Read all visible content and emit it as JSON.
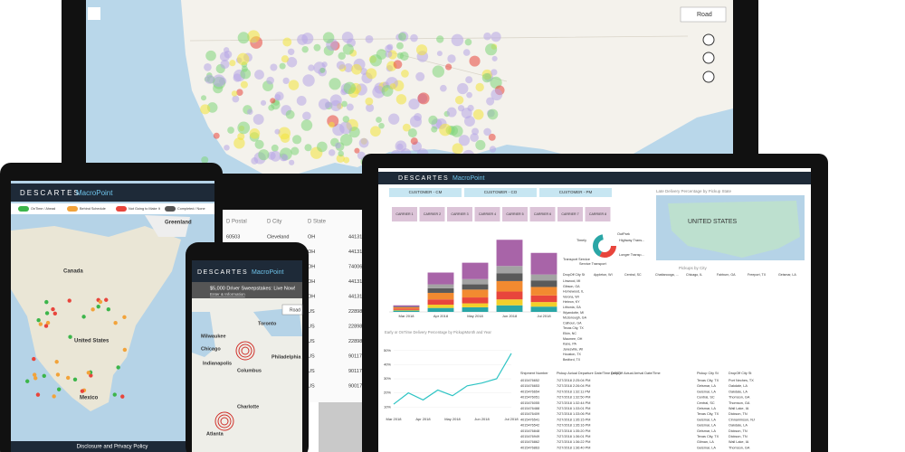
{
  "monitor": {
    "map_mode": "Road",
    "table": {
      "columns": [
        {
          "header": "D Postal",
          "cells": [
            "60503"
          ]
        },
        {
          "header": "D City",
          "cells": [
            "Cleveland"
          ]
        },
        {
          "header": "D State",
          "cells": [
            "OH",
            "OH",
            "OH",
            "OH",
            "OH",
            "US",
            "US",
            "US",
            "US",
            "US",
            "US"
          ]
        },
        {
          "cells": [
            "44131",
            "44131",
            "74006",
            "44131",
            "44131",
            "22898",
            "22898",
            "22898",
            "90117",
            "90117",
            "90017"
          ]
        }
      ]
    }
  },
  "tablet": {
    "brand": "DESCARTES",
    "product": "MacroPoint",
    "legend": [
      "OnTime / Ahead",
      "Behind Schedule",
      "Not Going to Make It",
      "Completed / None"
    ],
    "map_labels": [
      "Greenland",
      "Canada",
      "United States",
      "Mexico"
    ],
    "footer": "Disclosure and Privacy Policy"
  },
  "phone": {
    "brand": "DESCARTES",
    "product": "MacroPoint",
    "banner": "$5,000 Driver Sweepstakes: Live Now!",
    "banner_link": "Enter & Information",
    "map_mode": "Road",
    "cities": [
      "Toronto",
      "Milwaukee",
      "Chicago",
      "Indianapolis",
      "Columbus",
      "Philadelphia",
      "Charlotte",
      "Atlanta"
    ]
  },
  "laptop": {
    "brand": "DESCARTES",
    "product": "MacroPoint",
    "customers": [
      "CUSTOMER - CM",
      "CUSTOMER - CO",
      "CUSTOMER - PM"
    ],
    "carriers": [
      "CARRIER 1",
      "CARRIER 2",
      "CARRIER 3",
      "CARRIER 4",
      "CARRIER 5",
      "CARRIER 6",
      "CARRIER 7",
      "CARRIER 8"
    ],
    "donut_labels": [
      "Timely",
      "OutPark",
      "Highway Trans...",
      "Longer Transp...",
      "Transport Service",
      "Service Transport"
    ],
    "map_title": "Late Delivery Percentage by Pickup State",
    "map_label": "UNITED STATES",
    "pivot": {
      "title": "Pickups by City",
      "headers": [
        "DropOff City St",
        "Appleton, WI",
        "Central, SC",
        "Chattanooga, ...",
        "Chicago, IL",
        "Fairburn, GA",
        "Freeport, TX",
        "Geismar, LA"
      ],
      "rows": [
        "Linwood, MI",
        "Gibson, GA",
        "Homewood, IL",
        "Verona, WI",
        "Hebron, KY",
        "Lithonia, GA",
        "Wyandotte, MI",
        "Mcdonough, GA",
        "Calhoun, GA",
        "Texas City, TX",
        "Elkin, NC",
        "Maumee, OH",
        "Kane, PA",
        "Janesville, WI",
        "Houston, TX",
        "Bedford, TX"
      ]
    },
    "shipments": {
      "headers": [
        "Shipment Number",
        "Pickup Actual Departure Date/Time (UTC)",
        "DropOff Actual Arrival Date/Time",
        "Pickup City St",
        "DropOff City St"
      ],
      "rows": [
        [
          "4015476652",
          "7/27/2018 2:25:04 PM",
          "Texas City, TX",
          "Port Neches, TX"
        ],
        [
          "4015476653",
          "7/27/2018 2:26:04 PM",
          "Geismar, LA",
          "Oakdale, LA"
        ],
        [
          "4015476654",
          "7/27/2018 1:32:11 PM",
          "Geismar, LA",
          "Oakdale, LA"
        ],
        [
          "4015476051",
          "7/27/2018 1:32:50 PM",
          "Central, SC",
          "Thomson, GA"
        ],
        [
          "4015476055",
          "7/27/2018 1:32:44 PM",
          "Central, SC",
          "Thomson, GA"
        ],
        [
          "4015476488",
          "7/27/2018 1:33:01 PM",
          "Geismar, LA",
          "Wall Lake, IA"
        ],
        [
          "4015476409",
          "7/27/2018 1:33:06 PM",
          "Texas City, TX",
          "Dickson, TN"
        ],
        [
          "4015476541",
          "7/27/2018 1:35:15 PM",
          "Geismar, LA",
          "Cinnaminson, NJ"
        ],
        [
          "4015476542",
          "7/27/2018 1:35:16 PM",
          "Geismar, LA",
          "Oakdale, LA"
        ],
        [
          "4015476848",
          "7/27/2018 1:35:20 PM",
          "Geismar, LA",
          "Dickson, TN"
        ],
        [
          "4015476949",
          "7/27/2018 1:36:01 PM",
          "Texas City, TX",
          "Dickson, TN"
        ],
        [
          "4015476862",
          "7/27/2018 1:36:22 PM",
          "Gilman, LA",
          "Wall Lake, IA"
        ],
        [
          "4015476863",
          "7/27/2018 1:36:40 PM",
          "Geismar, LA",
          "Thomson, GA"
        ]
      ]
    }
  },
  "chart_data": [
    {
      "type": "stacked-bar",
      "categories": [
        "Mar 2018",
        "Apr 2018",
        "May 2018",
        "Jun 2018",
        "Jul 2018"
      ],
      "ylim": [
        0,
        120
      ],
      "series": [
        {
          "color": "#2aa6a6",
          "values": [
            2,
            6,
            7,
            10,
            8
          ]
        },
        {
          "color": "#f2cf2a",
          "values": [
            1,
            5,
            6,
            9,
            7
          ]
        },
        {
          "color": "#e8453c",
          "values": [
            2,
            8,
            9,
            12,
            10
          ]
        },
        {
          "color": "#f28a30",
          "values": [
            2,
            10,
            12,
            16,
            13
          ]
        },
        {
          "color": "#5a5a5a",
          "values": [
            1,
            7,
            8,
            12,
            10
          ]
        },
        {
          "color": "#a3a3a3",
          "values": [
            0,
            6,
            8,
            11,
            9
          ]
        },
        {
          "color": "#a864a8",
          "values": [
            2,
            18,
            25,
            40,
            33
          ]
        }
      ]
    },
    {
      "type": "line",
      "title": "Early or OnTime Delivery Percentage by PickupMonth and Year",
      "categories": [
        "Mar 2018",
        null,
        "Apr 2018",
        null,
        "May 2018",
        null,
        "Jun 2018",
        null,
        "Jul 2018"
      ],
      "values": [
        12,
        20,
        15,
        22,
        18,
        25,
        27,
        30,
        48
      ],
      "color": "#2ec4c4",
      "ylim": [
        5,
        55
      ],
      "yticks": [
        {
          "value": 10,
          "label": "10%"
        },
        {
          "value": 20,
          "label": "20%"
        },
        {
          "value": 30,
          "label": "30%"
        },
        {
          "value": 40,
          "label": "40%"
        },
        {
          "value": 50,
          "label": "50%"
        }
      ],
      "grid": true
    }
  ]
}
